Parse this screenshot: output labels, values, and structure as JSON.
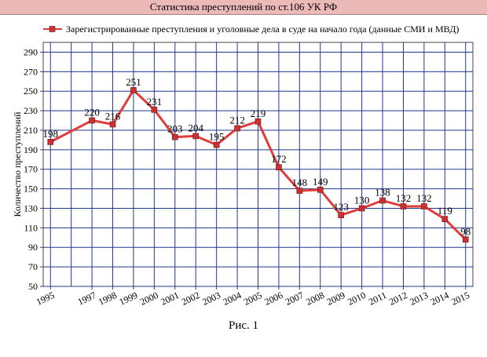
{
  "title": "Статистика преступлений по ст.106 УК РФ",
  "figure_caption": "Рис. 1",
  "colors": {
    "series": "#e03c3c",
    "marker_fill": "#c83232",
    "grid": "#1f3a8a",
    "title_bg": "#ecb9b9"
  },
  "chart_data": {
    "type": "line",
    "title": "",
    "xlabel": "",
    "ylabel": "Количество преступлений",
    "ylim": [
      50,
      300
    ],
    "yticks": [
      50,
      70,
      90,
      110,
      130,
      150,
      170,
      190,
      210,
      230,
      250,
      270,
      290
    ],
    "grid": true,
    "legend_position": "top",
    "x": [
      "1995",
      "1997",
      "1998",
      "1999",
      "2000",
      "2001",
      "2002",
      "2003",
      "2004",
      "2005",
      "2006",
      "2007",
      "2008",
      "2009",
      "2010",
      "2011",
      "2012",
      "2013",
      "2014",
      "2015"
    ],
    "series": [
      {
        "name": "Зарегистрированные преступления и уголовные дела в суде на начало года (данные СМИ и МВД)",
        "values": [
          198,
          220,
          216,
          251,
          231,
          203,
          204,
          195,
          212,
          219,
          172,
          148,
          149,
          123,
          130,
          138,
          132,
          132,
          119,
          98
        ]
      }
    ]
  }
}
